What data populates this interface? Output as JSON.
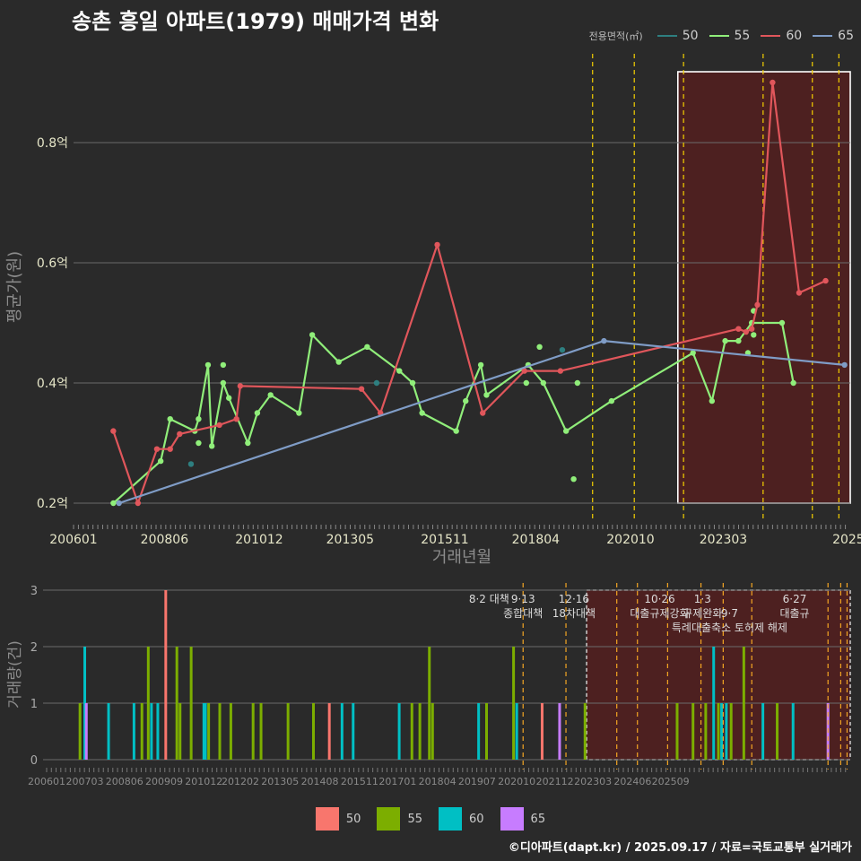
{
  "title": "송촌 흥일 아파트(1979) 매매가격 변화",
  "credit": "©디아파트(dapt.kr) / 2025.09.17 / 자료=국토교통부 실거래가",
  "legend_title": "전용면적(㎡)",
  "colors": {
    "line_50": "#2e7f80",
    "line_55": "#90ee7a",
    "line_60": "#e0565b",
    "line_65": "#7f9cc6",
    "bar_50": "#f8766d",
    "bar_55": "#7cae00",
    "bar_60": "#00bfc4",
    "bar_65": "#c77cff",
    "policy_tight": "#f5d000",
    "policy_bottom": "#f5a623"
  },
  "chart_data": [
    {
      "type": "line",
      "xlabel": "거래년월",
      "ylabel": "평균가(원)",
      "x_ticks": [
        "200601",
        "200806",
        "201012",
        "201305",
        "201511",
        "201804",
        "202010",
        "202303",
        "2025"
      ],
      "y_ticks": [
        "0.2억",
        "0.4억",
        "0.6억",
        "0.8억"
      ],
      "ylim": [
        0.17,
        0.93
      ],
      "series": [
        {
          "name": "50",
          "color_key": "line_50",
          "points": [
            [
              2014.0,
              0.4
            ],
            [
              2018.9,
              0.455
            ],
            [
              2009.1,
              0.265
            ]
          ],
          "connect": false
        },
        {
          "name": "55",
          "color_key": "line_55",
          "points": [
            [
              2007.05,
              0.2
            ],
            [
              2008.3,
              0.27
            ],
            [
              2008.55,
              0.34
            ],
            [
              2009.2,
              0.32
            ],
            [
              2009.3,
              0.34
            ],
            [
              2009.55,
              0.43
            ],
            [
              2009.65,
              0.295
            ],
            [
              2009.95,
              0.4
            ],
            [
              2010.1,
              0.375
            ],
            [
              2010.6,
              0.3
            ],
            [
              2010.85,
              0.35
            ],
            [
              2011.2,
              0.38
            ],
            [
              2011.95,
              0.35
            ],
            [
              2012.3,
              0.48
            ],
            [
              2013.0,
              0.435
            ],
            [
              2013.75,
              0.46
            ],
            [
              2014.6,
              0.42
            ],
            [
              2014.95,
              0.4
            ],
            [
              2015.2,
              0.35
            ],
            [
              2016.1,
              0.32
            ],
            [
              2016.35,
              0.37
            ],
            [
              2016.75,
              0.43
            ],
            [
              2016.9,
              0.38
            ],
            [
              2018.0,
              0.43
            ],
            [
              2018.4,
              0.4
            ],
            [
              2019.0,
              0.32
            ],
            [
              2020.2,
              0.37
            ],
            [
              2022.35,
              0.45
            ],
            [
              2022.85,
              0.37
            ],
            [
              2023.2,
              0.47
            ],
            [
              2023.55,
              0.47
            ],
            [
              2023.9,
              0.5
            ],
            [
              2024.7,
              0.5
            ],
            [
              2025.0,
              0.4
            ]
          ],
          "connect": true,
          "extra_points": [
            [
              2009.3,
              0.3
            ],
            [
              2009.95,
              0.43
            ],
            [
              2018.3,
              0.46
            ],
            [
              2017.95,
              0.4
            ],
            [
              2019.3,
              0.4
            ],
            [
              2019.2,
              0.24
            ],
            [
              2023.95,
              0.52
            ],
            [
              2023.95,
              0.48
            ],
            [
              2023.8,
              0.45
            ]
          ]
        },
        {
          "name": "60",
          "color_key": "line_60",
          "points": [
            [
              2007.05,
              0.32
            ],
            [
              2007.7,
              0.2
            ],
            [
              2008.2,
              0.29
            ],
            [
              2008.55,
              0.29
            ],
            [
              2008.8,
              0.315
            ],
            [
              2009.85,
              0.33
            ],
            [
              2010.3,
              0.34
            ],
            [
              2010.4,
              0.395
            ],
            [
              2013.6,
              0.39
            ],
            [
              2014.1,
              0.35
            ],
            [
              2015.6,
              0.63
            ],
            [
              2016.8,
              0.35
            ],
            [
              2017.9,
              0.42
            ],
            [
              2018.85,
              0.42
            ],
            [
              2023.55,
              0.49
            ],
            [
              2023.75,
              0.485
            ],
            [
              2023.9,
              0.49
            ],
            [
              2024.05,
              0.53
            ],
            [
              2024.45,
              0.9
            ],
            [
              2025.15,
              0.55
            ],
            [
              2025.85,
              0.57
            ]
          ],
          "connect": true
        },
        {
          "name": "65",
          "color_key": "line_65",
          "points": [
            [
              2007.2,
              0.2
            ],
            [
              2020.0,
              0.47
            ],
            [
              2026.35,
              0.43
            ]
          ],
          "connect": true
        }
      ]
    },
    {
      "type": "bar",
      "xlabel": "",
      "ylabel": "거래량(건)",
      "x_ticks": [
        "200601",
        "200703",
        "200806",
        "200909",
        "201012",
        "201202",
        "201305",
        "201408",
        "201511",
        "201701",
        "201804",
        "201907",
        "202010",
        "202112",
        "202303",
        "202406",
        "202509"
      ],
      "y_ticks": [
        "0",
        "1",
        "2",
        "3"
      ],
      "ylim": [
        0,
        3
      ],
      "bars": [
        {
          "x": 2007.05,
          "v": 1,
          "s": "55"
        },
        {
          "x": 2007.2,
          "v": 2,
          "s": "60"
        },
        {
          "x": 2007.25,
          "v": 1,
          "s": "65"
        },
        {
          "x": 2007.95,
          "v": 1,
          "s": "60"
        },
        {
          "x": 2008.75,
          "v": 1,
          "s": "60"
        },
        {
          "x": 2009.0,
          "v": 1,
          "s": "55"
        },
        {
          "x": 2009.2,
          "v": 2,
          "s": "55"
        },
        {
          "x": 2009.3,
          "v": 1,
          "s": "60"
        },
        {
          "x": 2009.5,
          "v": 1,
          "s": "60"
        },
        {
          "x": 2009.75,
          "v": 3,
          "s": "50"
        },
        {
          "x": 2010.1,
          "v": 2,
          "s": "55"
        },
        {
          "x": 2010.2,
          "v": 1,
          "s": "55"
        },
        {
          "x": 2010.55,
          "v": 2,
          "s": "55"
        },
        {
          "x": 2010.95,
          "v": 1,
          "s": "60"
        },
        {
          "x": 2011.0,
          "v": 1,
          "s": "60"
        },
        {
          "x": 2011.1,
          "v": 1,
          "s": "55"
        },
        {
          "x": 2011.45,
          "v": 1,
          "s": "55"
        },
        {
          "x": 2011.8,
          "v": 1,
          "s": "55"
        },
        {
          "x": 2012.5,
          "v": 1,
          "s": "55"
        },
        {
          "x": 2012.75,
          "v": 1,
          "s": "55"
        },
        {
          "x": 2013.6,
          "v": 1,
          "s": "55"
        },
        {
          "x": 2014.4,
          "v": 1,
          "s": "55"
        },
        {
          "x": 2014.9,
          "v": 1,
          "s": "50"
        },
        {
          "x": 2015.3,
          "v": 1,
          "s": "60"
        },
        {
          "x": 2015.65,
          "v": 1,
          "s": "60"
        },
        {
          "x": 2017.1,
          "v": 1,
          "s": "60"
        },
        {
          "x": 2017.5,
          "v": 1,
          "s": "55"
        },
        {
          "x": 2017.75,
          "v": 1,
          "s": "55"
        },
        {
          "x": 2018.05,
          "v": 2,
          "s": "55"
        },
        {
          "x": 2018.15,
          "v": 1,
          "s": "55"
        },
        {
          "x": 2019.6,
          "v": 1,
          "s": "60"
        },
        {
          "x": 2019.85,
          "v": 1,
          "s": "55"
        },
        {
          "x": 2020.7,
          "v": 2,
          "s": "55"
        },
        {
          "x": 2020.8,
          "v": 1,
          "s": "60"
        },
        {
          "x": 2021.6,
          "v": 1,
          "s": "50"
        },
        {
          "x": 2022.15,
          "v": 1,
          "s": "65"
        },
        {
          "x": 2022.95,
          "v": 1,
          "s": "55"
        },
        {
          "x": 2025.85,
          "v": 1,
          "s": "55"
        },
        {
          "x": 2026.35,
          "v": 1,
          "s": "55"
        },
        {
          "x": 2026.75,
          "v": 1,
          "s": "55"
        },
        {
          "x": 2027.0,
          "v": 2,
          "s": "60"
        },
        {
          "x": 2027.15,
          "v": 1,
          "s": "55"
        },
        {
          "x": 2027.25,
          "v": 1,
          "s": "60"
        },
        {
          "x": 2027.4,
          "v": 1,
          "s": "60"
        },
        {
          "x": 2027.55,
          "v": 1,
          "s": "55"
        },
        {
          "x": 2027.95,
          "v": 2,
          "s": "55"
        },
        {
          "x": 2028.55,
          "v": 1,
          "s": "60"
        },
        {
          "x": 2029.0,
          "v": 1,
          "s": "55"
        },
        {
          "x": 2029.5,
          "v": 1,
          "s": "60"
        },
        {
          "x": 2030.6,
          "v": 1,
          "s": "65"
        }
      ],
      "annotations": [
        {
          "x": 2019.93,
          "lines": [
            "8·2 대책"
          ]
        },
        {
          "x": 2021.0,
          "lines": [
            "9·13",
            "종합대책"
          ]
        },
        {
          "x": 2022.6,
          "lines": [
            "12·16",
            "18차대책"
          ]
        },
        {
          "x": 2025.3,
          "lines": [
            "10·26",
            "대출규제강화"
          ]
        },
        {
          "x": 2026.65,
          "lines": [
            "1·3",
            "규제완화"
          ]
        },
        {
          "x": 2027.5,
          "lines": [
            "",
            "9·7",
            "특례대출축소 토허제 해제"
          ]
        },
        {
          "x": 2029.55,
          "lines": [
            "6·27",
            "대출규"
          ]
        }
      ]
    }
  ]
}
